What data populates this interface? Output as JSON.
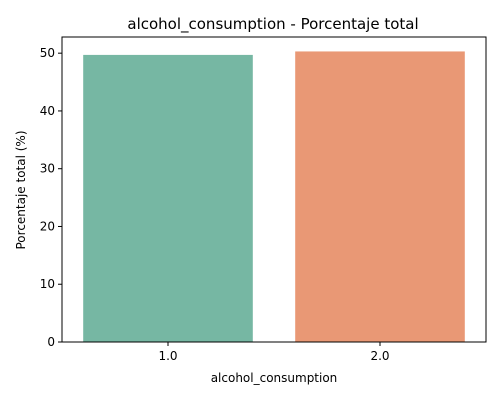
{
  "chart_data": {
    "type": "bar",
    "title": "alcohol_consumption - Porcentaje total",
    "xlabel": "alcohol_consumption",
    "ylabel": "Porcentaje total (%)",
    "categories": [
      "1.0",
      "2.0"
    ],
    "values": [
      49.7,
      50.3
    ],
    "colors": [
      "#76b7a3",
      "#e99875"
    ],
    "ylim": [
      0,
      52.8
    ],
    "yticks": [
      "0",
      "10",
      "20",
      "30",
      "40",
      "50"
    ],
    "grid": false
  }
}
